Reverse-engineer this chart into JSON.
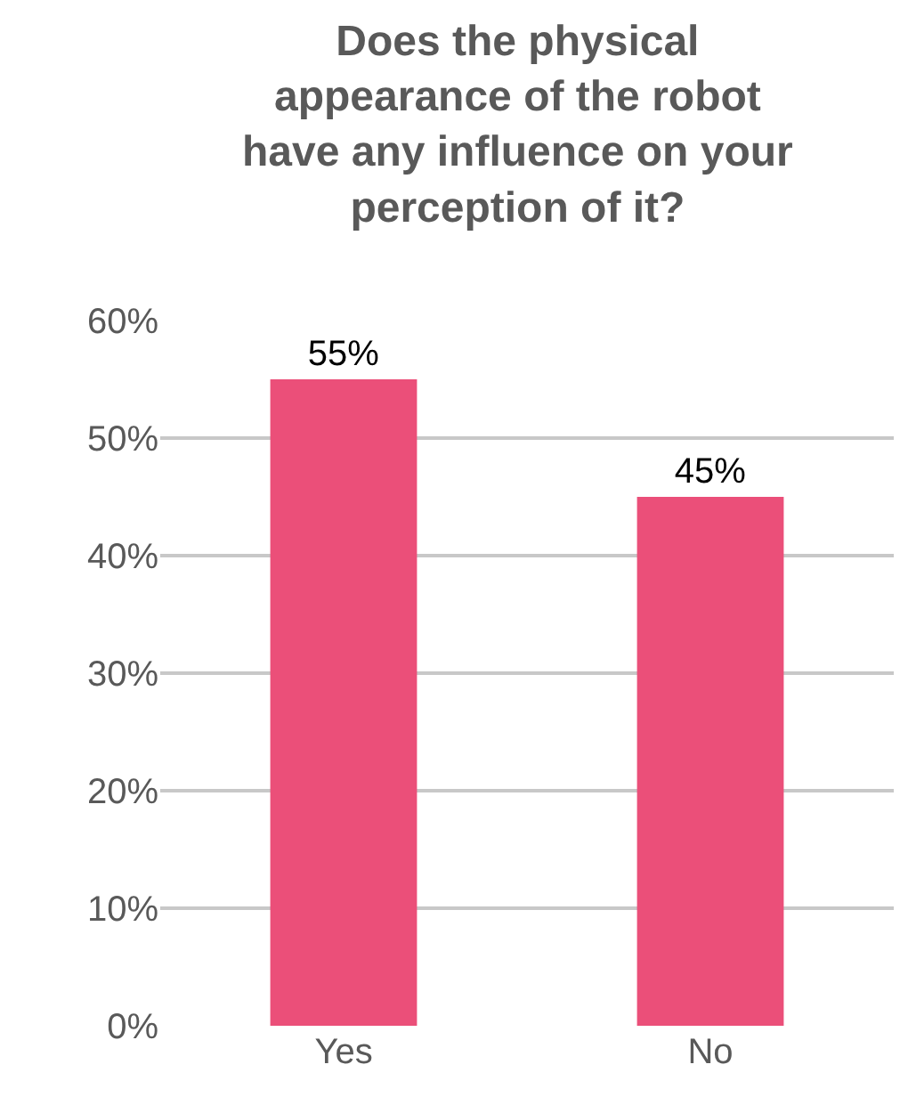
{
  "chart_data": {
    "type": "bar",
    "title": "Does the physical\nappearance of the robot\nhave any influence on your\nperception of it?",
    "categories": [
      "Yes",
      "No"
    ],
    "values": [
      55,
      45
    ],
    "value_labels": [
      "55%",
      "45%"
    ],
    "color": "#eb4f79",
    "ylim": [
      0,
      60
    ],
    "yticks": [
      {
        "value": 0,
        "label": "0%"
      },
      {
        "value": 10,
        "label": "10%"
      },
      {
        "value": 20,
        "label": "20%"
      },
      {
        "value": 30,
        "label": "30%"
      },
      {
        "value": 40,
        "label": "40%"
      },
      {
        "value": 50,
        "label": "50%"
      },
      {
        "value": 60,
        "label": "60%"
      }
    ],
    "grid": "y"
  }
}
